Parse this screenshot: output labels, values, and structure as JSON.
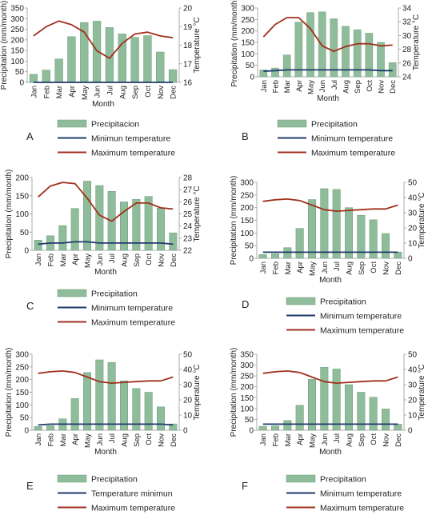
{
  "chart_data": [
    {
      "panel_label": "A",
      "type": "bar+line",
      "categories": [
        "Jan",
        "Feb",
        "Mar",
        "Apr",
        "May",
        "Jun",
        "Jul",
        "Aug",
        "Sep",
        "Oct",
        "Nov",
        "Dec"
      ],
      "xlabel": "Month",
      "ylabel_left": "Precipitation (mm/month)",
      "ylabel_right": "Temperature °C",
      "ylim_left": [
        0,
        350
      ],
      "yticks_left": [
        0,
        50,
        100,
        150,
        200,
        250,
        300,
        350
      ],
      "ylim_right": [
        16,
        20
      ],
      "yticks_right": [
        16,
        17,
        18,
        19,
        20
      ],
      "series": [
        {
          "name": "Precipitacion",
          "kind": "bar",
          "axis": "left",
          "color": "#8fbc9a",
          "values": [
            38,
            58,
            110,
            215,
            282,
            288,
            258,
            228,
            212,
            220,
            143,
            60
          ]
        },
        {
          "name": "Minimun temperature",
          "kind": "line",
          "axis": "right",
          "color": "#1f3a6e",
          "values": [
            16.0,
            16.0,
            16.0,
            16.0,
            16.0,
            16.0,
            16.0,
            16.0,
            16.0,
            16.0,
            16.0,
            16.0
          ]
        },
        {
          "name": "Maximum temperature",
          "kind": "line",
          "axis": "right",
          "color": "#a0301c",
          "values": [
            18.5,
            19.0,
            19.3,
            19.1,
            18.7,
            17.7,
            17.3,
            18.1,
            18.6,
            18.7,
            18.5,
            18.4
          ]
        }
      ]
    },
    {
      "panel_label": "B",
      "type": "bar+line",
      "categories": [
        "Jan",
        "Feb",
        "Mar",
        "Apr",
        "May",
        "Jun",
        "Jul",
        "Aug",
        "Sep",
        "Oct",
        "Nov",
        "Dec"
      ],
      "xlabel": "Month",
      "ylabel_left": "Precipitation (mm/month)",
      "ylabel_right": "Temperature °C",
      "ylim_left": [
        0,
        300
      ],
      "yticks_left": [
        0,
        50,
        100,
        150,
        200,
        250,
        300
      ],
      "ylim_right": [
        24,
        34
      ],
      "yticks_right": [
        24,
        26,
        28,
        30,
        32,
        34
      ],
      "series": [
        {
          "name": "Precipitation",
          "kind": "bar",
          "axis": "left",
          "color": "#8fbc9a",
          "values": [
            30,
            38,
            95,
            238,
            280,
            283,
            253,
            220,
            205,
            190,
            150,
            62
          ]
        },
        {
          "name": "Minimum temperature",
          "kind": "line",
          "axis": "right",
          "color": "#1f3a6e",
          "values": [
            24.8,
            24.9,
            25.0,
            25.0,
            25.0,
            25.0,
            25.0,
            25.0,
            25.0,
            25.0,
            24.9,
            24.9
          ]
        },
        {
          "name": "Maximum temperature",
          "kind": "line",
          "axis": "right",
          "color": "#a0301c",
          "values": [
            29.8,
            31.6,
            32.6,
            32.6,
            31.0,
            28.5,
            27.7,
            28.4,
            28.8,
            28.8,
            28.5,
            28.6
          ]
        }
      ]
    },
    {
      "panel_label": "C",
      "type": "bar+line",
      "categories": [
        "Jan",
        "Feb",
        "Mar",
        "Apr",
        "May",
        "Jun",
        "Jul",
        "Aug",
        "Sep",
        "Oct",
        "Nov",
        "Dec"
      ],
      "xlabel": "Month",
      "ylabel_left": "Precipitation (mm/month)",
      "ylabel_right": "Temperature °C",
      "ylim_left": [
        0,
        200
      ],
      "yticks_left": [
        0,
        50,
        100,
        150,
        200
      ],
      "ylim_right": [
        22,
        28
      ],
      "yticks_right": [
        22,
        23,
        24,
        25,
        26,
        27,
        28
      ],
      "series": [
        {
          "name": "Precipitation",
          "kind": "bar",
          "axis": "left",
          "color": "#8fbc9a",
          "values": [
            28,
            40,
            68,
            115,
            190,
            178,
            162,
            133,
            140,
            148,
            116,
            48
          ]
        },
        {
          "name": "Minimum temperature",
          "kind": "line",
          "axis": "right",
          "color": "#1f3a6e",
          "values": [
            22.5,
            22.6,
            22.6,
            22.7,
            22.7,
            22.6,
            22.6,
            22.6,
            22.6,
            22.6,
            22.6,
            22.5
          ]
        },
        {
          "name": "Maximum temperature",
          "kind": "line",
          "axis": "right",
          "color": "#a0301c",
          "values": [
            26.4,
            27.3,
            27.6,
            27.5,
            26.3,
            24.9,
            24.4,
            25.2,
            25.9,
            25.9,
            25.5,
            25.4
          ]
        }
      ]
    },
    {
      "panel_label": "D",
      "type": "bar+line",
      "categories": [
        "Jan",
        "Feb",
        "Mar",
        "Apr",
        "May",
        "Jun",
        "Jul",
        "Aug",
        "Sep",
        "Oct",
        "Nov",
        "Dec"
      ],
      "xlabel": "Month",
      "ylabel_left": "Precipitation (mm/month)",
      "ylabel_right": "Temperature °C",
      "ylim_left": [
        0,
        300
      ],
      "yticks_left": [
        0,
        50,
        100,
        150,
        200,
        250,
        300
      ],
      "ylim_right": [
        0,
        50
      ],
      "yticks_right": [
        0,
        10,
        20,
        30,
        40,
        50
      ],
      "series": [
        {
          "name": "Precipitation",
          "kind": "bar",
          "axis": "left",
          "color": "#8fbc9a",
          "values": [
            15,
            18,
            42,
            118,
            232,
            275,
            272,
            200,
            170,
            152,
            98,
            25
          ]
        },
        {
          "name": "Minimum temperature",
          "kind": "line",
          "axis": "right",
          "color": "#1f3a6e",
          "values": [
            4,
            4,
            4,
            4,
            4,
            4,
            4,
            4,
            4,
            4,
            4,
            4
          ]
        },
        {
          "name": "Maximum temperature",
          "kind": "line",
          "axis": "right",
          "color": "#a0301c",
          "values": [
            37.5,
            38.5,
            39.0,
            38.0,
            35.0,
            32.0,
            31.0,
            31.5,
            32.0,
            32.5,
            32.5,
            35.0
          ]
        }
      ]
    },
    {
      "panel_label": "E",
      "type": "bar+line",
      "categories": [
        "Jan",
        "Feb",
        "Mar",
        "Apr",
        "May",
        "Jun",
        "Jul",
        "Aug",
        "Sep",
        "Oct",
        "Nov",
        "Dec"
      ],
      "xlabel": "Month",
      "ylabel_left": "Precipitation (mm/month)",
      "ylabel_right": "Temperature °C",
      "ylim_left": [
        0,
        300
      ],
      "yticks_left": [
        0,
        50,
        100,
        150,
        200,
        250,
        300
      ],
      "ylim_right": [
        0,
        50
      ],
      "yticks_right": [
        0,
        10,
        20,
        30,
        40,
        50
      ],
      "series": [
        {
          "name": "Precipitation",
          "kind": "bar",
          "axis": "left",
          "color": "#8fbc9a",
          "values": [
            15,
            18,
            45,
            125,
            228,
            278,
            268,
            195,
            165,
            150,
            92,
            25
          ]
        },
        {
          "name": "Temperature minimun",
          "kind": "line",
          "axis": "right",
          "color": "#1f3a6e",
          "values": [
            3.5,
            4,
            4,
            4,
            4,
            4,
            4,
            4,
            4,
            4,
            4,
            3.5
          ]
        },
        {
          "name": "Maximum temperature",
          "kind": "line",
          "axis": "right",
          "color": "#a0301c",
          "values": [
            37.5,
            38.5,
            39.0,
            38.0,
            35.0,
            32.0,
            31.0,
            31.5,
            32.0,
            32.5,
            32.5,
            35.0
          ]
        }
      ]
    },
    {
      "panel_label": "F",
      "type": "bar+line",
      "categories": [
        "Jan",
        "Feb",
        "Mar",
        "Apr",
        "May",
        "Jun",
        "Jul",
        "Aug",
        "Sep",
        "Oct",
        "Nov",
        "Dec"
      ],
      "xlabel": "Month",
      "ylabel_left": "Precipitation (mm/month)",
      "ylabel_right": "Temperature °C",
      "ylim_left": [
        0,
        350
      ],
      "yticks_left": [
        0,
        50,
        100,
        150,
        200,
        250,
        300,
        350
      ],
      "ylim_right": [
        0,
        50
      ],
      "yticks_right": [
        0,
        10,
        20,
        30,
        40,
        50
      ],
      "series": [
        {
          "name": "Precipitation",
          "kind": "bar",
          "axis": "left",
          "color": "#8fbc9a",
          "values": [
            18,
            20,
            45,
            115,
            235,
            290,
            282,
            210,
            175,
            152,
            98,
            28
          ]
        },
        {
          "name": "Minimum temperature",
          "kind": "line",
          "axis": "right",
          "color": "#1f3a6e",
          "values": [
            4,
            4,
            4,
            4,
            4,
            4,
            4,
            4,
            4,
            4,
            4,
            4
          ]
        },
        {
          "name": "Maximum temperature",
          "kind": "line",
          "axis": "right",
          "color": "#a0301c",
          "values": [
            37.5,
            38.5,
            39.0,
            38.0,
            35.0,
            32.0,
            31.0,
            31.5,
            32.0,
            32.5,
            32.5,
            35.0
          ]
        }
      ]
    }
  ]
}
